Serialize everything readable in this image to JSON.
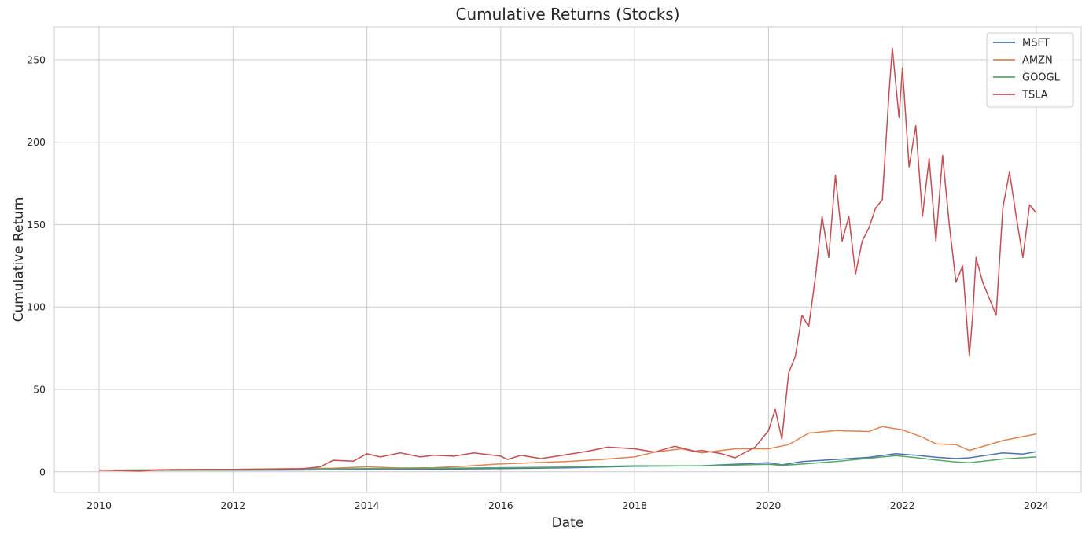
{
  "chart_data": {
    "type": "line",
    "title": "Cumulative Returns (Stocks)",
    "xlabel": "Date",
    "ylabel": "Cumulative Return",
    "xlim": [
      2009.33,
      2024.67
    ],
    "ylim": [
      -12.5,
      270
    ],
    "x_ticks": [
      2010,
      2012,
      2014,
      2016,
      2018,
      2020,
      2022,
      2024
    ],
    "x_tick_labels": [
      "2010",
      "2012",
      "2014",
      "2016",
      "2018",
      "2020",
      "2022",
      "2024"
    ],
    "y_ticks": [
      0,
      50,
      100,
      150,
      200,
      250
    ],
    "y_tick_labels": [
      "0",
      "50",
      "100",
      "150",
      "200",
      "250"
    ],
    "grid": true,
    "legend_position": "top-right",
    "series": [
      {
        "name": "MSFT",
        "color": "#4c72b0",
        "x": [
          2010,
          2011,
          2012,
          2013,
          2014,
          2015,
          2016,
          2017,
          2018,
          2019,
          2020,
          2020.2,
          2020.5,
          2021,
          2021.5,
          2021.9,
          2022.2,
          2022.5,
          2022.8,
          2023,
          2023.5,
          2023.8,
          2024
        ],
        "y": [
          1.0,
          0.9,
          1.0,
          1.1,
          1.4,
          1.6,
          1.9,
          2.4,
          3.4,
          3.7,
          5.5,
          4.2,
          6.2,
          7.5,
          8.8,
          11.0,
          10.0,
          8.9,
          8.0,
          8.5,
          11.5,
          10.8,
          12.2
        ]
      },
      {
        "name": "AMZN",
        "color": "#dd8452",
        "x": [
          2010,
          2011,
          2012,
          2013,
          2013.5,
          2014,
          2014.5,
          2015,
          2015.5,
          2016,
          2016.5,
          2017,
          2017.5,
          2018,
          2018.3,
          2018.7,
          2019,
          2019.5,
          2020,
          2020.3,
          2020.6,
          2021,
          2021.5,
          2021.7,
          2022,
          2022.3,
          2022.5,
          2022.8,
          2023,
          2023.5,
          2024
        ],
        "y": [
          1.0,
          1.3,
          1.5,
          2.0,
          2.2,
          3.0,
          2.3,
          2.5,
          3.5,
          4.8,
          5.5,
          6.3,
          7.5,
          9.0,
          12.0,
          14.0,
          11.5,
          14.0,
          14.0,
          16.5,
          23.5,
          25.0,
          24.5,
          27.5,
          25.5,
          21.0,
          17.0,
          16.5,
          13.0,
          19.0,
          23.0
        ]
      },
      {
        "name": "GOOGL",
        "color": "#55a868",
        "x": [
          2010,
          2011,
          2012,
          2013,
          2014,
          2015,
          2016,
          2017,
          2018,
          2019,
          2020,
          2020.2,
          2020.5,
          2021,
          2021.5,
          2021.9,
          2022.2,
          2022.5,
          2022.8,
          2023,
          2023.5,
          2024
        ],
        "y": [
          1.0,
          1.0,
          1.1,
          1.6,
          1.9,
          2.1,
          2.5,
          2.9,
          3.7,
          3.6,
          4.6,
          3.9,
          4.7,
          6.2,
          8.2,
          9.8,
          8.6,
          7.2,
          6.0,
          5.5,
          7.8,
          9.0
        ]
      },
      {
        "name": "TSLA",
        "color": "#c44e52",
        "x": [
          2010,
          2010.6,
          2011,
          2012,
          2013,
          2013.3,
          2013.5,
          2013.8,
          2014,
          2014.2,
          2014.5,
          2014.8,
          2015,
          2015.3,
          2015.6,
          2016,
          2016.1,
          2016.3,
          2016.6,
          2017,
          2017.3,
          2017.6,
          2018,
          2018.3,
          2018.6,
          2018.9,
          2019,
          2019.3,
          2019.5,
          2019.8,
          2020,
          2020.1,
          2020.2,
          2020.3,
          2020.4,
          2020.5,
          2020.6,
          2020.7,
          2020.8,
          2020.9,
          2021.0,
          2021.1,
          2021.2,
          2021.3,
          2021.4,
          2021.5,
          2021.6,
          2021.7,
          2021.8,
          2021.85,
          2021.95,
          2022.0,
          2022.1,
          2022.2,
          2022.3,
          2022.4,
          2022.5,
          2022.6,
          2022.7,
          2022.8,
          2022.9,
          2023.0,
          2023.05,
          2023.1,
          2023.2,
          2023.3,
          2023.4,
          2023.5,
          2023.6,
          2023.7,
          2023.8,
          2023.9,
          2024.0
        ],
        "y": [
          1.0,
          0.5,
          1.3,
          1.5,
          1.7,
          3.0,
          7.0,
          6.5,
          11.0,
          9.0,
          11.5,
          9.0,
          10.0,
          9.5,
          11.5,
          9.5,
          7.5,
          10.0,
          8.0,
          10.5,
          12.5,
          15.0,
          14.0,
          12.0,
          15.5,
          12.5,
          13.0,
          11.0,
          8.5,
          15.0,
          25.0,
          38.0,
          20.0,
          60.0,
          70.0,
          95.0,
          88.0,
          118.0,
          155.0,
          130.0,
          180.0,
          140.0,
          155.0,
          120.0,
          140.0,
          148.0,
          160.0,
          165.0,
          230.0,
          257.0,
          215.0,
          245.0,
          185.0,
          210.0,
          155.0,
          190.0,
          140.0,
          192.0,
          150.0,
          115.0,
          125.0,
          70.0,
          95.0,
          130.0,
          115.0,
          105.0,
          95.0,
          160.0,
          182.0,
          155.0,
          130.0,
          162.0,
          157.0
        ]
      }
    ]
  }
}
